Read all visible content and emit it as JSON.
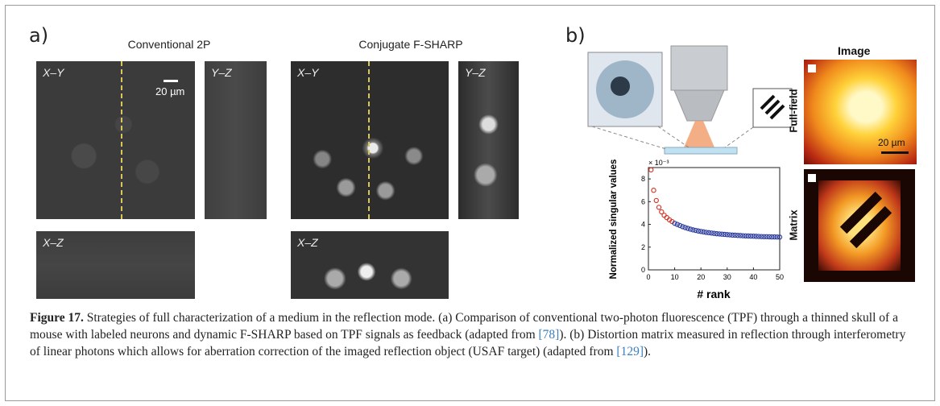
{
  "panel_a": {
    "label": "a)",
    "conventional_title": "Conventional 2P",
    "fsharp_title": "Conjugate F-SHARP",
    "xy_label": "X–Y",
    "yz_label": "Y–Z",
    "xz_label": "X–Z",
    "scale_label": "20 µm"
  },
  "panel_b": {
    "label": "b)",
    "image_title": "Image",
    "fullfield_label": "Full-field",
    "matrix_label": "Matrix",
    "scale_label": "20 µm"
  },
  "chart_data": {
    "type": "scatter",
    "title": "",
    "xlabel": "# rank",
    "ylabel": "Normalized singular values",
    "y_multiplier": "× 10⁻³",
    "xlim": [
      0,
      50
    ],
    "ylim": [
      0,
      9
    ],
    "xticks": [
      0,
      10,
      20,
      30,
      40,
      50
    ],
    "yticks": [
      0,
      2,
      4,
      6,
      8
    ],
    "series": [
      {
        "color": "#d23a2c",
        "x": [
          1,
          2,
          3,
          4,
          5,
          6,
          7,
          8,
          9
        ],
        "y": [
          8.8,
          7.0,
          6.1,
          5.5,
          5.1,
          4.8,
          4.6,
          4.4,
          4.25
        ]
      },
      {
        "color": "#2f3f9e",
        "x": [
          10,
          11,
          12,
          13,
          14,
          15,
          16,
          17,
          18,
          19,
          20,
          21,
          22,
          23,
          24,
          25,
          26,
          27,
          28,
          29,
          30,
          31,
          32,
          33,
          34,
          35,
          36,
          37,
          38,
          39,
          40,
          41,
          42,
          43,
          44,
          45,
          46,
          47,
          48,
          49,
          50
        ],
        "y": [
          4.1,
          4.0,
          3.9,
          3.8,
          3.72,
          3.65,
          3.58,
          3.52,
          3.47,
          3.42,
          3.38,
          3.34,
          3.3,
          3.27,
          3.24,
          3.21,
          3.18,
          3.16,
          3.14,
          3.12,
          3.1,
          3.08,
          3.06,
          3.05,
          3.03,
          3.02,
          3.0,
          2.99,
          2.98,
          2.97,
          2.96,
          2.95,
          2.94,
          2.93,
          2.92,
          2.92,
          2.91,
          2.9,
          2.9,
          2.89,
          2.88
        ]
      }
    ]
  },
  "caption": {
    "label": "Figure 17.",
    "text_1": " Strategies of full characterization of a medium in the reflection mode. (a) Comparison of conventional two-photon fluorescence (TPF) through a thinned skull of a mouse with labeled neurons and dynamic F-SHARP based on TPF signals as feedback (adapted from ",
    "ref_1": "[78]",
    "text_2": "). (b) Distortion matrix measured in reflection through interferometry of linear photons which allows for aberration correction of the imaged reflection object (USAF target) (adapted from ",
    "ref_2": "[129]",
    "text_3": ")."
  }
}
